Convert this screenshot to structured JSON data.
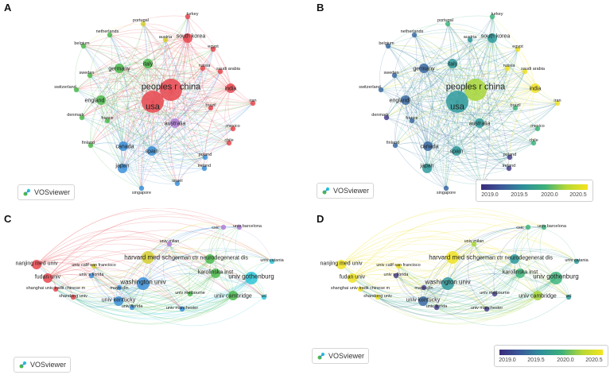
{
  "panels": {
    "A": {
      "label": "A"
    },
    "B": {
      "label": "B"
    },
    "C": {
      "label": "C"
    },
    "D": {
      "label": "D"
    }
  },
  "vosviewer_label": "VOSviewer",
  "colorbar": {
    "ticks": [
      "2019.0",
      "2019.5",
      "2020.0",
      "2020.5"
    ],
    "colors": [
      "#3a2b7a",
      "#3b5b9a",
      "#2f8f9a",
      "#3db07a",
      "#b6d835",
      "#f4e41e"
    ]
  },
  "countries": [
    {
      "label": "peoples r china",
      "size": "xl",
      "cluster": "red",
      "year": "yellowgreen"
    },
    {
      "label": "usa",
      "size": "xl",
      "cluster": "red",
      "year": "teal"
    },
    {
      "label": "south korea",
      "size": "m",
      "cluster": "red",
      "year": "teal"
    },
    {
      "label": "turkey",
      "size": "s",
      "cluster": "red",
      "year": "green"
    },
    {
      "label": "portugal",
      "size": "s",
      "cluster": "yellow",
      "year": "green"
    },
    {
      "label": "austria",
      "size": "s",
      "cluster": "yellow",
      "year": "teal"
    },
    {
      "label": "netherlands",
      "size": "s",
      "cluster": "green",
      "year": "blue"
    },
    {
      "label": "belgium",
      "size": "s",
      "cluster": "green",
      "year": "blue"
    },
    {
      "label": "italy",
      "size": "m",
      "cluster": "green",
      "year": "teal"
    },
    {
      "label": "germany",
      "size": "m",
      "cluster": "green",
      "year": "blue"
    },
    {
      "label": "egypt",
      "size": "s",
      "cluster": "red",
      "year": "yellow"
    },
    {
      "label": "russia",
      "size": "s",
      "cluster": "red",
      "year": "yellow"
    },
    {
      "label": "saudi arabia",
      "size": "s",
      "cluster": "red",
      "year": "yellow"
    },
    {
      "label": "sweden",
      "size": "s",
      "cluster": "green",
      "year": "blue"
    },
    {
      "label": "switzerland",
      "size": "s",
      "cluster": "green",
      "year": "blue"
    },
    {
      "label": "india",
      "size": "m",
      "cluster": "red",
      "year": "yellow"
    },
    {
      "label": "england",
      "size": "m",
      "cluster": "green",
      "year": "blue"
    },
    {
      "label": "iran",
      "size": "s",
      "cluster": "red",
      "year": "yellow"
    },
    {
      "label": "brazil",
      "size": "s",
      "cluster": "red",
      "year": "green"
    },
    {
      "label": "denmark",
      "size": "s",
      "cluster": "green",
      "year": "purple"
    },
    {
      "label": "france",
      "size": "s",
      "cluster": "green",
      "year": "blue"
    },
    {
      "label": "australia",
      "size": "m",
      "cluster": "purple",
      "year": "teal"
    },
    {
      "label": "mexico",
      "size": "s",
      "cluster": "red",
      "year": "green"
    },
    {
      "label": "chile",
      "size": "s",
      "cluster": "red",
      "year": "green"
    },
    {
      "label": "finland",
      "size": "s",
      "cluster": "green",
      "year": "blue"
    },
    {
      "label": "canada",
      "size": "m",
      "cluster": "blue",
      "year": "blue"
    },
    {
      "label": "spain",
      "size": "m",
      "cluster": "blue",
      "year": "teal"
    },
    {
      "label": "poland",
      "size": "s",
      "cluster": "blue",
      "year": "purple"
    },
    {
      "label": "japan",
      "size": "m",
      "cluster": "blue",
      "year": "teal"
    },
    {
      "label": "ireland",
      "size": "s",
      "cluster": "blue",
      "year": "purple"
    },
    {
      "label": "israel",
      "size": "s",
      "cluster": "blue",
      "year": "purple"
    },
    {
      "label": "singapore",
      "size": "s",
      "cluster": "blue",
      "year": "blue"
    }
  ],
  "institutions": [
    {
      "label": "csic",
      "size": "s",
      "cluster": "purple",
      "year": "green"
    },
    {
      "label": "univ barcelona",
      "size": "s",
      "cluster": "purple",
      "year": "green"
    },
    {
      "label": "univ milan",
      "size": "s",
      "cluster": "purple",
      "year": "yellowgreen"
    },
    {
      "label": "harvard med sch",
      "size": "l",
      "cluster": "yellow",
      "year": "yellow"
    },
    {
      "label": "nanjing med univ",
      "size": "m",
      "cluster": "red",
      "year": "yellow"
    },
    {
      "label": "univ calif san francisco",
      "size": "s",
      "cluster": "yellow",
      "year": "yellow"
    },
    {
      "label": "german ctr neurodegenerat dis",
      "size": "m",
      "cluster": "green",
      "year": "teal"
    },
    {
      "label": "univ catania",
      "size": "s",
      "cluster": "cyan",
      "year": "teal"
    },
    {
      "label": "karolinska inst",
      "size": "m",
      "cluster": "green",
      "year": "green"
    },
    {
      "label": "univ s florida",
      "size": "s",
      "cluster": "blue",
      "year": "purple"
    },
    {
      "label": "washington univ",
      "size": "l",
      "cluster": "blue",
      "year": "teal"
    },
    {
      "label": "fudan univ",
      "size": "m",
      "cluster": "red",
      "year": "yellow"
    },
    {
      "label": "univ gothenburg",
      "size": "l",
      "cluster": "cyan",
      "year": "green"
    },
    {
      "label": "mayo clin",
      "size": "s",
      "cluster": "blue",
      "year": "purple"
    },
    {
      "label": "shanghai univ tradit chinese m",
      "size": "s",
      "cluster": "red",
      "year": "yellow"
    },
    {
      "label": "univ melbourne",
      "size": "s",
      "cluster": "green",
      "year": "purple"
    },
    {
      "label": "univ cambridge",
      "size": "m",
      "cluster": "green",
      "year": "yellowgreen"
    },
    {
      "label": "ucl",
      "size": "s",
      "cluster": "cyan",
      "year": "teal"
    },
    {
      "label": "shandong univ",
      "size": "s",
      "cluster": "red",
      "year": "yellow"
    },
    {
      "label": "univ kentucky",
      "size": "m",
      "cluster": "blue",
      "year": "blue"
    },
    {
      "label": "univ florida",
      "size": "s",
      "cluster": "blue",
      "year": "purple"
    },
    {
      "label": "univ manchester",
      "size": "s",
      "cluster": "blue",
      "year": "purple"
    }
  ],
  "cluster_colors": {
    "red": "#e8474f",
    "green": "#4cba4c",
    "blue": "#3c8fd8",
    "yellow": "#d6cf33",
    "purple": "#b07fd6",
    "cyan": "#2ec5d8"
  },
  "year_colors": {
    "purple": "#4a3f8e",
    "blue": "#3b6aa3",
    "teal": "#2f9a9c",
    "green": "#3fb57d",
    "yellowgreen": "#a8d63a",
    "yellow": "#f0e224"
  }
}
